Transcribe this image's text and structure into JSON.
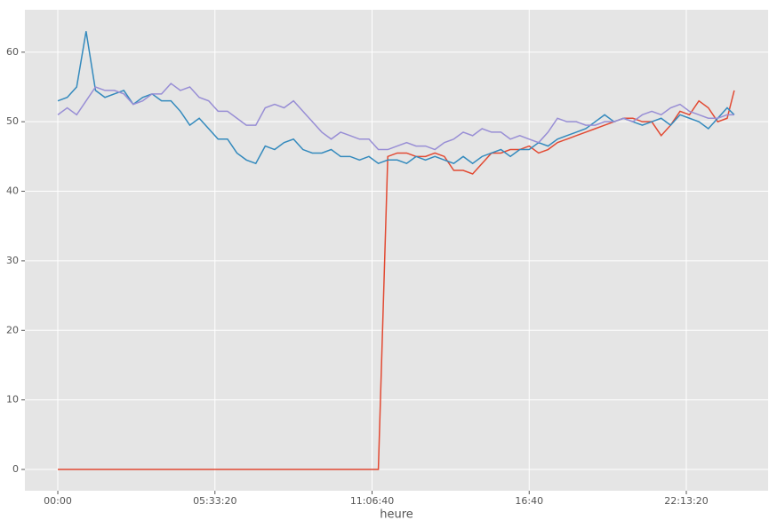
{
  "chart_data": {
    "type": "line",
    "xlabel": "heure",
    "x": [
      0,
      1200,
      2400,
      3600,
      4800,
      6000,
      7200,
      8400,
      9600,
      10800,
      12000,
      13200,
      14400,
      15600,
      16800,
      18000,
      19200,
      20400,
      21600,
      22800,
      24000,
      25200,
      26400,
      27600,
      28800,
      30000,
      31200,
      32400,
      33600,
      34800,
      36000,
      37200,
      38400,
      39600,
      40800,
      42000,
      43200,
      44400,
      45600,
      46800,
      48000,
      49200,
      50400,
      51600,
      52800,
      54000,
      55200,
      56400,
      57600,
      58800,
      60000,
      61200,
      62400,
      63600,
      64800,
      66000,
      67200,
      68400,
      69600,
      70800,
      72000,
      73200,
      74400,
      75600,
      76800,
      78000,
      79200,
      80400,
      81600,
      82800,
      84000,
      85200,
      86100
    ],
    "series": [
      {
        "color": "#E24A33",
        "values": [
          0,
          0,
          0,
          0,
          0,
          0,
          0,
          0,
          0,
          0,
          0,
          0,
          0,
          0,
          0,
          0,
          0,
          0,
          0,
          0,
          0,
          0,
          0,
          0,
          0,
          0,
          0,
          0,
          0,
          0,
          0,
          0,
          0,
          0,
          0,
          45,
          45.5,
          45.5,
          45,
          45,
          45.5,
          45,
          43,
          43,
          42.5,
          44,
          45.5,
          45.5,
          46,
          46,
          46.5,
          45.5,
          46,
          47,
          47.5,
          48,
          48.5,
          49,
          49.5,
          50,
          50.5,
          50.5,
          50,
          50,
          48,
          49.5,
          51.5,
          51,
          53,
          52,
          50,
          50.5,
          54.5
        ]
      },
      {
        "color": "#348ABD",
        "values": [
          53,
          53.5,
          55,
          63,
          54.5,
          53.5,
          54,
          54.5,
          52.5,
          53.5,
          54,
          53,
          53,
          51.5,
          49.5,
          50.5,
          49,
          47.5,
          47.5,
          45.5,
          44.5,
          44,
          46.5,
          46,
          47,
          47.5,
          46,
          45.5,
          45.5,
          46,
          45,
          45,
          44.5,
          45,
          44,
          44.5,
          44.5,
          44,
          45,
          44.5,
          45,
          44.5,
          44,
          45,
          44,
          45,
          45.5,
          46,
          45,
          46,
          46,
          47,
          46.5,
          47.5,
          48,
          48.5,
          49,
          50,
          51,
          50,
          50.5,
          50,
          49.5,
          50,
          50.5,
          49.5,
          51,
          50.5,
          50,
          49,
          50.5,
          52,
          51
        ]
      },
      {
        "color": "#988ED5",
        "values": [
          51,
          52,
          51,
          53,
          55,
          54.5,
          54.5,
          54,
          52.5,
          53,
          54,
          54,
          55.5,
          54.5,
          55,
          53.5,
          53,
          51.5,
          51.5,
          50.5,
          49.5,
          49.5,
          52,
          52.5,
          52,
          53,
          51.5,
          50,
          48.5,
          47.5,
          48.5,
          48,
          47.5,
          47.5,
          46,
          46,
          46.5,
          47,
          46.5,
          46.5,
          46,
          47,
          47.5,
          48.5,
          48,
          49,
          48.5,
          48.5,
          47.5,
          48,
          47.5,
          47,
          48.5,
          50.5,
          50,
          50,
          49.5,
          49.5,
          50,
          50,
          50.5,
          50,
          51,
          51.5,
          51,
          52,
          52.5,
          51.5,
          51,
          50.5,
          50.5,
          51,
          51
        ]
      }
    ],
    "xlim": [
      -4190,
      90410
    ],
    "ylim": [
      -3.06,
      66.1
    ],
    "xticks": [
      {
        "value": 0,
        "label": "00:00"
      },
      {
        "value": 20000,
        "label": "05:33:20"
      },
      {
        "value": 40000,
        "label": "11:06:40"
      },
      {
        "value": 60000,
        "label": "16:40"
      },
      {
        "value": 80000,
        "label": "22:13:20"
      }
    ],
    "yticks": [
      0,
      10,
      20,
      30,
      40,
      50,
      60
    ],
    "grid": true
  }
}
